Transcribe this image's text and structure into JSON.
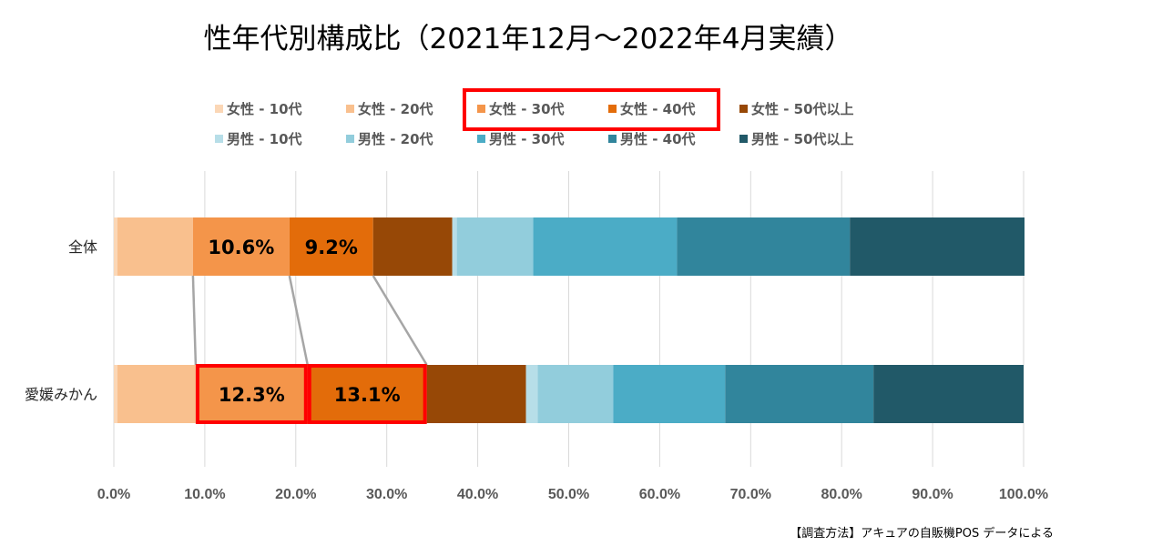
{
  "chart_data": {
    "type": "bar",
    "orientation": "horizontal",
    "stacked": "percent",
    "title": "性年代別構成比（2021年12月～2022年4月実績）",
    "categories": [
      "全体",
      "愛媛みかん"
    ],
    "xlim": [
      0,
      100
    ],
    "x_ticks": [
      "0.0%",
      "10.0%",
      "20.0%",
      "30.0%",
      "40.0%",
      "50.0%",
      "60.0%",
      "70.0%",
      "80.0%",
      "90.0%",
      "100.0%"
    ],
    "grid": true,
    "legend_position": "top",
    "series": [
      {
        "name": "女性 - 10代",
        "color": "#FBD7B6",
        "values": [
          0.4,
          0.4
        ]
      },
      {
        "name": "女性 - 20代",
        "color": "#F9C08E",
        "values": [
          8.3,
          8.6
        ]
      },
      {
        "name": "女性 - 30代",
        "color": "#F4954A",
        "values": [
          10.6,
          12.3
        ],
        "highlight": true
      },
      {
        "name": "女性 - 40代",
        "color": "#E36C0A",
        "values": [
          9.2,
          13.1
        ],
        "highlight": true
      },
      {
        "name": "女性 - 50代以上",
        "color": "#974806",
        "values": [
          8.7,
          10.9
        ]
      },
      {
        "name": "男性 - 10代",
        "color": "#B7DEE8",
        "values": [
          0.5,
          1.3
        ]
      },
      {
        "name": "男性 - 20代",
        "color": "#92CDDC",
        "values": [
          8.4,
          8.3
        ]
      },
      {
        "name": "男性 - 30代",
        "color": "#4BACC6",
        "values": [
          15.8,
          12.3
        ]
      },
      {
        "name": "男性 - 40代",
        "color": "#31859C",
        "values": [
          19.0,
          16.3
        ]
      },
      {
        "name": "男性 - 50代以上",
        "color": "#215968",
        "values": [
          19.2,
          16.5
        ]
      }
    ],
    "data_labels": [
      {
        "category": 0,
        "series": 2,
        "text": "10.6%"
      },
      {
        "category": 0,
        "series": 3,
        "text": "9.2%"
      },
      {
        "category": 1,
        "series": 2,
        "text": "12.3%"
      },
      {
        "category": 1,
        "series": 3,
        "text": "13.1%"
      }
    ],
    "connector_series": [
      2,
      3,
      4
    ],
    "highlight_color": "#FF0000",
    "grid_color": "#D9D9D9",
    "connector_color": "#A6A6A6"
  },
  "source_note": "【調査方法】アキュアの自販機POS データによる"
}
